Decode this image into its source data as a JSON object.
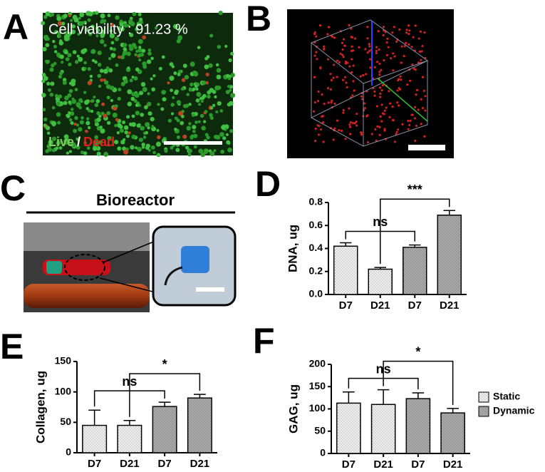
{
  "panels": {
    "A": {
      "letter": "A",
      "caption": "Cell viability : 91.23 %",
      "live": "Live",
      "slash": "/",
      "dead": "Dead"
    },
    "B": {
      "letter": "B"
    },
    "C": {
      "letter": "C",
      "title": "Bioreactor"
    },
    "D": {
      "letter": "D"
    },
    "E": {
      "letter": "E"
    },
    "F": {
      "letter": "F"
    }
  },
  "chart_data": [
    {
      "type": "bar",
      "ylabel": "DNA, ug",
      "categories": [
        "D7",
        "D21",
        "D7",
        "D21"
      ],
      "values": [
        0.42,
        0.22,
        0.41,
        0.69
      ],
      "errors": [
        0.03,
        0.015,
        0.02,
        0.04
      ],
      "colors": [
        "#f0f0f0",
        "#f0f0f0",
        "#a8a8a8",
        "#a8a8a8"
      ],
      "ylim": [
        0,
        0.8
      ],
      "yticks": [
        {
          "value": 0,
          "label": "0.0"
        },
        0.2,
        0.4,
        0.6,
        0.8
      ],
      "annotations": [
        {
          "text": "ns",
          "between": [
            0,
            2
          ]
        },
        {
          "text": "***",
          "between": [
            1,
            3
          ]
        }
      ]
    },
    {
      "type": "bar",
      "ylabel": "Collagen, ug",
      "categories": [
        "D7",
        "D21",
        "D7",
        "D21"
      ],
      "values": [
        45,
        45,
        76,
        90
      ],
      "errors": [
        25,
        8,
        7,
        6
      ],
      "colors": [
        "#f0f0f0",
        "#f0f0f0",
        "#a8a8a8",
        "#a8a8a8"
      ],
      "ylim": [
        0,
        150
      ],
      "yticks": [
        0,
        50,
        100,
        150
      ],
      "annotations": [
        {
          "text": "ns",
          "between": [
            0,
            2
          ]
        },
        {
          "text": "*",
          "between": [
            1,
            3
          ]
        }
      ]
    },
    {
      "type": "bar",
      "ylabel": "GAG, ug",
      "categories": [
        "D7",
        "D21",
        "D7",
        "D21"
      ],
      "values": [
        113,
        110,
        123,
        91
      ],
      "errors": [
        25,
        33,
        13,
        10
      ],
      "colors": [
        "#f0f0f0",
        "#f0f0f0",
        "#a8a8a8",
        "#a8a8a8"
      ],
      "ylim": [
        0,
        200
      ],
      "yticks": [
        0,
        50,
        100,
        150,
        200
      ],
      "annotations": [
        {
          "text": "ns",
          "between": [
            0,
            2
          ]
        },
        {
          "text": "*",
          "between": [
            1,
            3
          ]
        }
      ],
      "legend": [
        {
          "name": "Static",
          "color": "#f0f0f0"
        },
        {
          "name": "Dynamic",
          "color": "#a8a8a8"
        }
      ]
    }
  ]
}
